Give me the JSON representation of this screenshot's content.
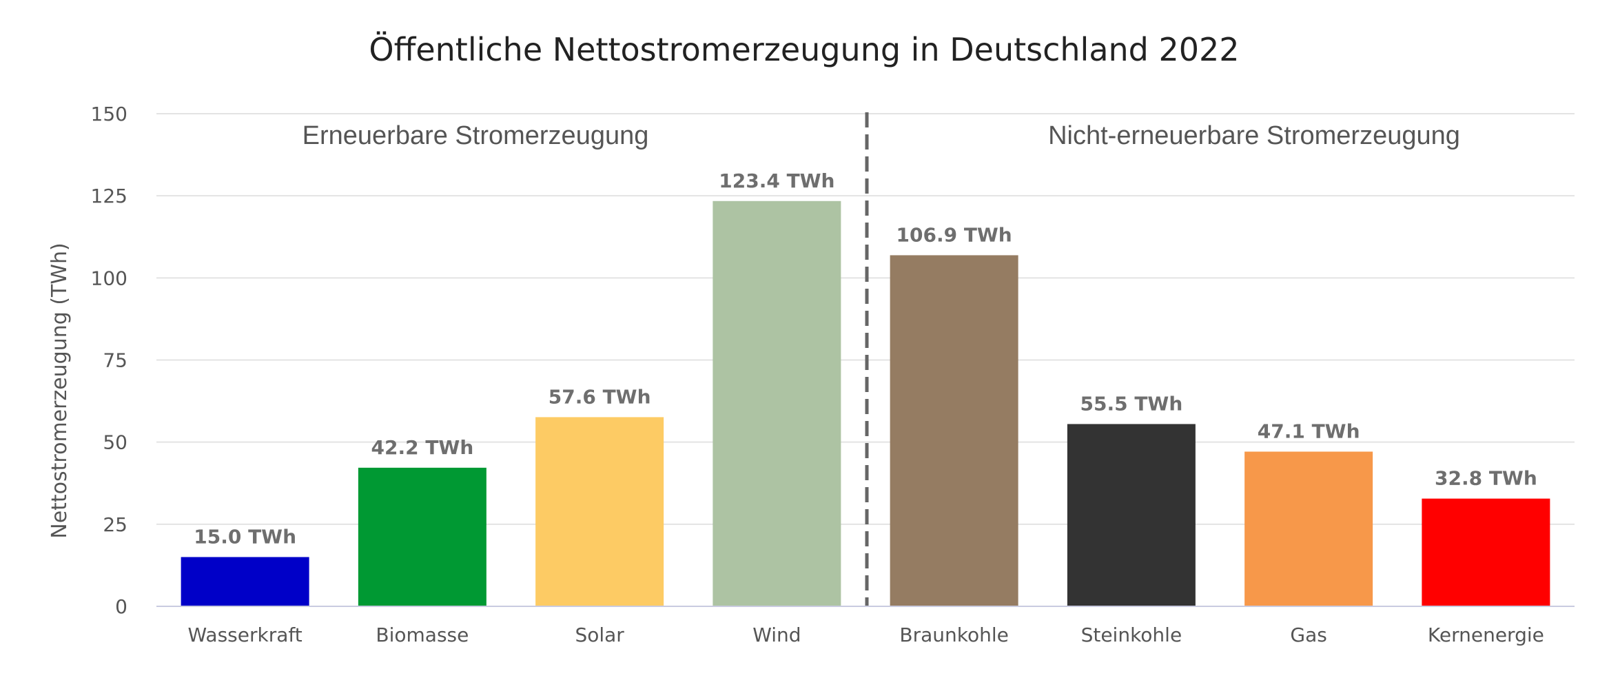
{
  "chart_data": {
    "type": "bar",
    "title": "Öffentliche Nettostromerzeugung in Deutschland 2022",
    "ylabel": "Nettostromerzeugung (TWh)",
    "xlabel": "",
    "ylim": [
      0,
      150
    ],
    "yticks": [
      0,
      25,
      50,
      75,
      100,
      125,
      150
    ],
    "grid": true,
    "categories": [
      "Wasserkraft",
      "Biomasse",
      "Solar",
      "Wind",
      "Braunkohle",
      "Steinkohle",
      "Gas",
      "Kernenergie"
    ],
    "values": [
      15.0,
      42.2,
      57.6,
      123.4,
      106.9,
      55.5,
      47.1,
      32.8
    ],
    "value_labels": [
      "15.0 TWh",
      "42.2 TWh",
      "57.6 TWh",
      "123.4 TWh",
      "106.9 TWh",
      "55.5 TWh",
      "47.1 TWh",
      "32.8 TWh"
    ],
    "colors": [
      "#0000c8",
      "#009933",
      "#fdcb64",
      "#adc3a3",
      "#957c62",
      "#333333",
      "#f7984a",
      "#ff0000"
    ],
    "groups": [
      {
        "label": "Erneuerbare Stromerzeugung",
        "categories": [
          "Wasserkraft",
          "Biomasse",
          "Solar",
          "Wind"
        ]
      },
      {
        "label": "Nicht-erneuerbare Stromerzeugung",
        "categories": [
          "Braunkohle",
          "Steinkohle",
          "Gas",
          "Kernenergie"
        ]
      }
    ],
    "divider": "dashed line between Wind and Braunkohle"
  }
}
